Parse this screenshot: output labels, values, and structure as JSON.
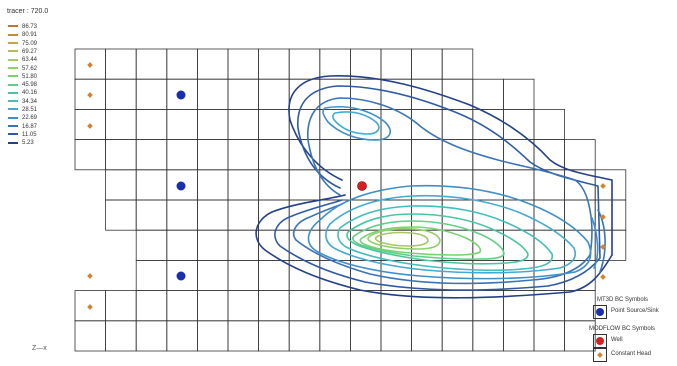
{
  "title": "tracer : 720.0",
  "legend": {
    "levels": [
      "86.73",
      "80.91",
      "75.09",
      "69.27",
      "63.44",
      "57.62",
      "51.80",
      "45.98",
      "40.16",
      "34.34",
      "28.51",
      "22.69",
      "16.87",
      "11.05",
      "5.23"
    ],
    "colors": [
      "#c9722f",
      "#c88a3a",
      "#c9a34a",
      "#bcb95a",
      "#a6c765",
      "#8fd06c",
      "#78d274",
      "#5ecf86",
      "#49c6a0",
      "#42bcc0",
      "#44abd0",
      "#3f8fc8",
      "#3a74b8",
      "#2f5aa3",
      "#22408a"
    ]
  },
  "axis_indicator": "Z—x",
  "bc_legend": {
    "mt3d_title": "MT3D BC Symbols",
    "point_source": "Point Source/Sink",
    "modflow_title": "MODFLOW BC Symbols",
    "well": "Well",
    "constant_head": "Constant Head"
  },
  "colors": {
    "grid": "#333333",
    "point_source": "#1a2fb0",
    "well": "#d42020",
    "constant_head": "#d4832a"
  }
}
